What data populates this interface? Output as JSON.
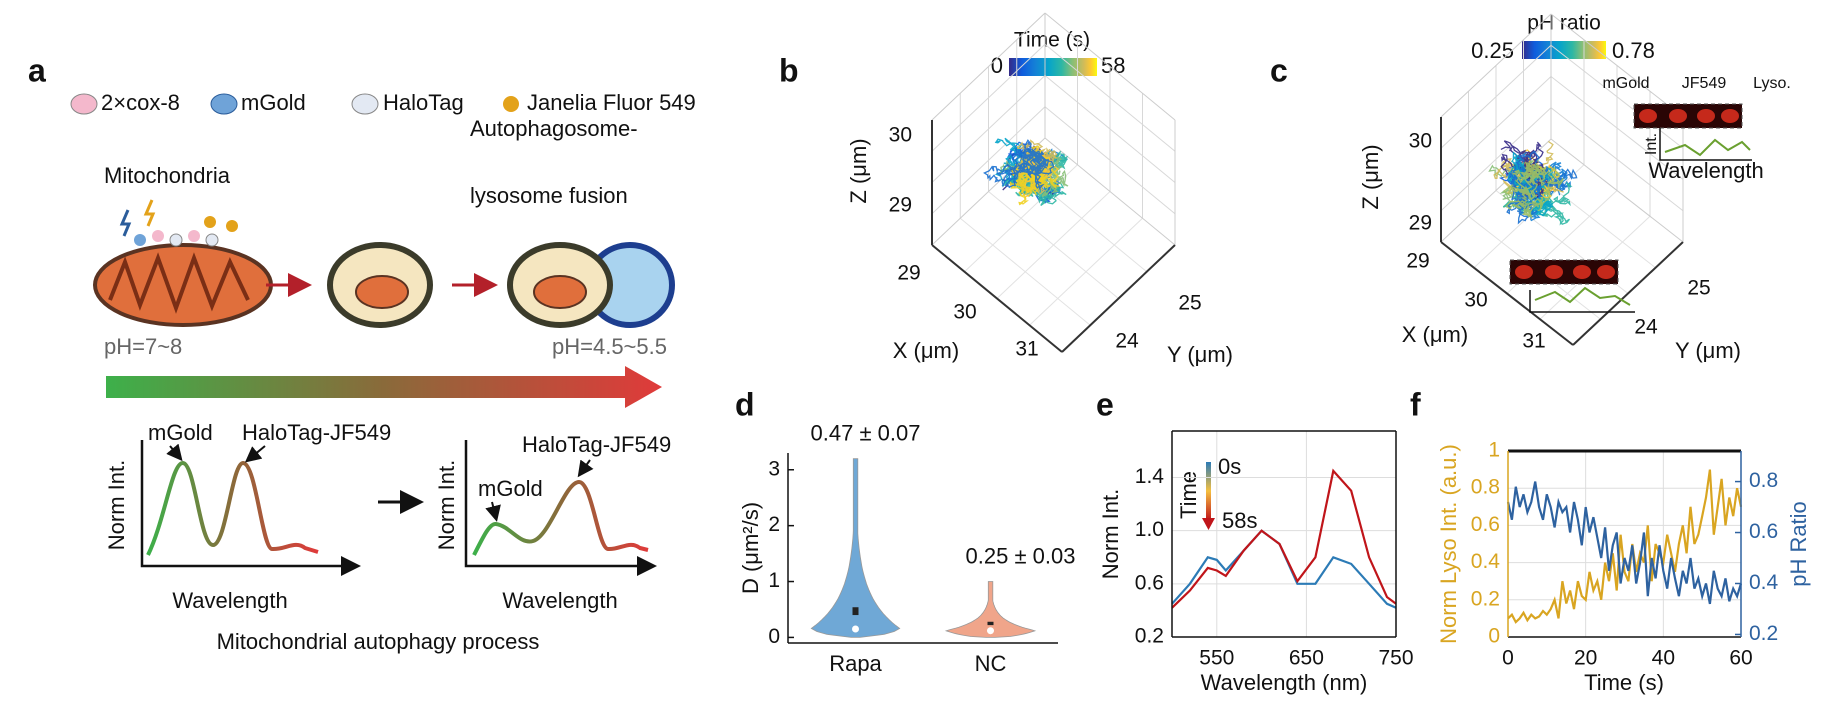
{
  "panels": {
    "a": {
      "label": "a",
      "legend": [
        "2×cox-8",
        "mGold",
        "HaloTag",
        "Janelia Fluor 549"
      ],
      "stage_labels": [
        "Mitochondria",
        "Autophagosome-",
        "lysosome fusion"
      ],
      "ph_labels": [
        "pH=7~8",
        "pH=4.5~5.5"
      ],
      "spectra": [
        {
          "ylabel": "Norm Int.",
          "xlabel": "Wavelength",
          "peaks": [
            "mGold",
            "HaloTag-JF549"
          ]
        },
        {
          "ylabel": "Norm Int.",
          "xlabel": "Wavelength",
          "peaks": [
            "mGold",
            "HaloTag-JF549"
          ]
        }
      ],
      "caption": "Mitochondrial autophagy process"
    },
    "b": {
      "label": "b",
      "colorbar_title": "Time (s)",
      "colorbar_ticks": [
        0,
        58
      ],
      "zlabel": "Z (μm)",
      "zticks": [
        29,
        30
      ],
      "xlabel": "X (μm)",
      "xticks": [
        29,
        30,
        31
      ],
      "ylabel": "Y (μm)",
      "yticks": [
        24,
        25
      ]
    },
    "c": {
      "label": "c",
      "colorbar_title": "pH ratio",
      "colorbar_ticks": [
        0.25,
        0.78
      ],
      "zlabel": "Z (μm)",
      "zticks": [
        29,
        30
      ],
      "xlabel": "X (μm)",
      "xticks": [
        29,
        30,
        31
      ],
      "ylabel": "Y (μm)",
      "yticks": [
        24,
        25
      ],
      "inset_labels": [
        "mGold",
        "JF549",
        "Lyso."
      ],
      "inset_ylabel": "Int.",
      "inset_xlabel": "Wavelength"
    }
  },
  "chart_data": [
    {
      "type": "violin",
      "label": "d",
      "ylabel": "D (μm²/s)",
      "categories": [
        "Rapa",
        "NC"
      ],
      "values": [
        0.47,
        0.25
      ],
      "errors": [
        0.07,
        0.03
      ],
      "value_labels": [
        "0.47 ± 0.07",
        "0.25 ± 0.03"
      ],
      "medians": [
        0.15,
        0.12
      ],
      "min": [
        0,
        0
      ],
      "max": [
        3.2,
        1.0
      ],
      "colors": [
        "#6fa8d6",
        "#f0a58a"
      ],
      "ylim": [
        -0.1,
        3.3
      ],
      "yticks": [
        0,
        1,
        2,
        3
      ]
    },
    {
      "type": "line",
      "label": "e",
      "xlabel": "Wavelength (nm)",
      "ylabel": "Norm Int.",
      "legend_title": "Time",
      "x": [
        500,
        520,
        540,
        550,
        560,
        580,
        600,
        620,
        640,
        660,
        680,
        700,
        720,
        740,
        750
      ],
      "series": [
        {
          "name": "0s",
          "color": "#2c7bb6",
          "values": [
            0.45,
            0.6,
            0.8,
            0.78,
            0.7,
            0.85,
            1.0,
            0.9,
            0.6,
            0.6,
            0.8,
            0.75,
            0.6,
            0.45,
            0.42
          ]
        },
        {
          "name": "58s",
          "color": "#c0151a",
          "values": [
            0.42,
            0.55,
            0.72,
            0.7,
            0.66,
            0.85,
            1.0,
            0.9,
            0.62,
            0.8,
            1.45,
            1.3,
            0.8,
            0.5,
            0.45
          ]
        }
      ],
      "xlim": [
        500,
        750
      ],
      "ylim": [
        0.2,
        1.75
      ],
      "xticks": [
        550,
        650,
        750
      ],
      "yticks": [
        0.2,
        0.6,
        {
          "value": 1,
          "label": "1.0"
        },
        1.4
      ],
      "grid": true
    },
    {
      "type": "line",
      "label": "f",
      "xlabel": "Time (s)",
      "ylabel": "Norm Lyso Int. (a.u.)",
      "y2label": "pH Ratio",
      "x": [
        0,
        1,
        2,
        3,
        4,
        5,
        6,
        7,
        8,
        9,
        10,
        11,
        12,
        13,
        14,
        15,
        16,
        17,
        18,
        19,
        20,
        21,
        22,
        23,
        24,
        25,
        26,
        27,
        28,
        29,
        30,
        31,
        32,
        33,
        34,
        35,
        36,
        37,
        38,
        39,
        40,
        41,
        42,
        43,
        44,
        45,
        46,
        47,
        48,
        49,
        50,
        51,
        52,
        53,
        54,
        55,
        56,
        57,
        58,
        59,
        60
      ],
      "series": [
        {
          "color": "#d9a521",
          "values": [
            0.1,
            0.12,
            0.08,
            0.1,
            0.13,
            0.09,
            0.12,
            0.1,
            0.11,
            0.14,
            0.12,
            0.15,
            0.2,
            0.1,
            0.3,
            0.18,
            0.25,
            0.15,
            0.3,
            0.22,
            0.2,
            0.35,
            0.25,
            0.3,
            0.2,
            0.4,
            0.3,
            0.45,
            0.25,
            0.55,
            0.35,
            0.3,
            0.5,
            0.35,
            0.45,
            0.4,
            0.6,
            0.3,
            0.5,
            0.45,
            0.4,
            0.55,
            0.45,
            0.35,
            0.5,
            0.6,
            0.45,
            0.7,
            0.5,
            0.55,
            0.65,
            0.75,
            0.9,
            0.55,
            0.7,
            0.85,
            0.6,
            0.75,
            0.65,
            0.8,
            0.7
          ]
        },
        {
          "color": "#2e62a0",
          "axis": "y2",
          "values": [
            0.72,
            0.65,
            0.78,
            0.7,
            0.75,
            0.68,
            0.72,
            0.8,
            0.7,
            0.65,
            0.75,
            0.7,
            0.62,
            0.72,
            0.68,
            0.7,
            0.6,
            0.72,
            0.65,
            0.55,
            0.7,
            0.6,
            0.66,
            0.58,
            0.5,
            0.62,
            0.45,
            0.55,
            0.6,
            0.4,
            0.5,
            0.45,
            0.55,
            0.4,
            0.48,
            0.6,
            0.35,
            0.5,
            0.42,
            0.55,
            0.45,
            0.38,
            0.5,
            0.42,
            0.35,
            0.45,
            0.4,
            0.5,
            0.38,
            0.42,
            0.35,
            0.4,
            0.32,
            0.45,
            0.38,
            0.35,
            0.42,
            0.33,
            0.38,
            0.35,
            0.4
          ]
        }
      ],
      "xlim": [
        0,
        60
      ],
      "ylim": [
        0,
        1
      ],
      "y2lim": [
        0.19,
        0.92
      ],
      "xticks": [
        0,
        20,
        40,
        60
      ],
      "yticks": [
        0,
        0.2,
        0.4,
        0.6,
        0.8,
        1
      ],
      "y2ticks": [
        0.2,
        0.4,
        0.6,
        0.8
      ],
      "grid": true
    }
  ]
}
